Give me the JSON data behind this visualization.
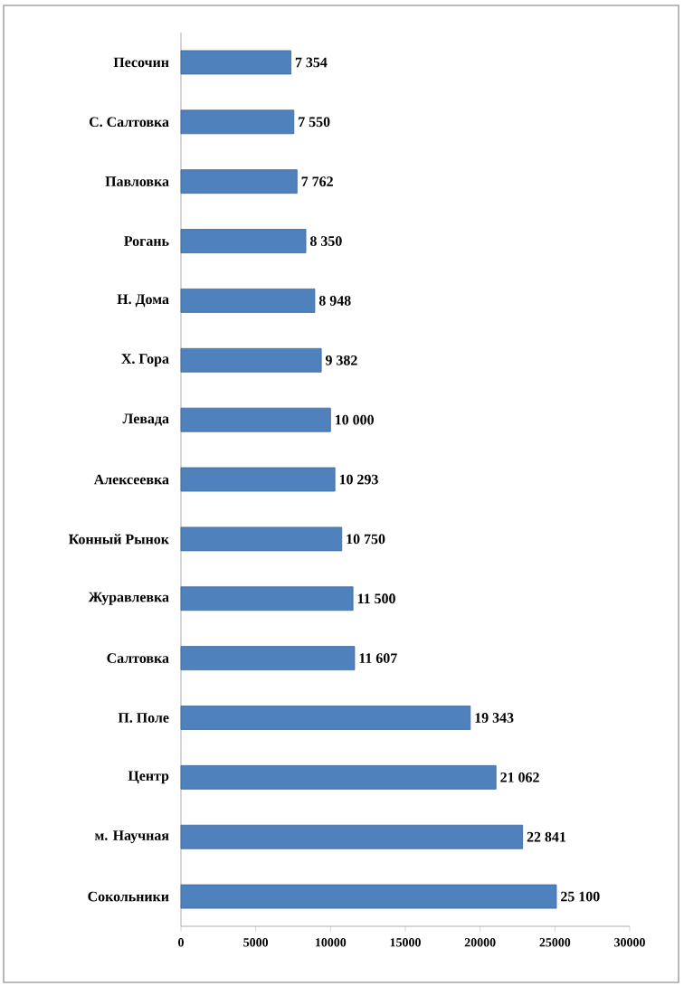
{
  "chart_data": {
    "type": "bar",
    "orientation": "horizontal",
    "categories": [
      "Песочин",
      "С. Салтовка",
      "Павловка",
      "Рогань",
      "Н. Дома",
      "Х. Гора",
      "Левада",
      "Алексеевка",
      "Конный Рынок",
      "Журавлевка",
      "Салтовка",
      "П. Поле",
      "Центр",
      "м. Научная",
      "Сокольники"
    ],
    "values": [
      7354,
      7550,
      7762,
      8350,
      8948,
      9382,
      10000,
      10293,
      10750,
      11500,
      11607,
      19343,
      21062,
      22841,
      25100
    ],
    "value_labels": [
      "7 354",
      "7 550",
      "7 762",
      "8 350",
      "8 948",
      "9 382",
      "10 000",
      "10 293",
      "10 750",
      "11 500",
      "11 607",
      "19 343",
      "21 062",
      "22 841",
      "25 100"
    ],
    "color": "#4f81bd",
    "xlim": [
      0,
      30000
    ],
    "xticks": [
      0,
      5000,
      10000,
      15000,
      20000,
      25000,
      30000
    ],
    "grid": false
  }
}
